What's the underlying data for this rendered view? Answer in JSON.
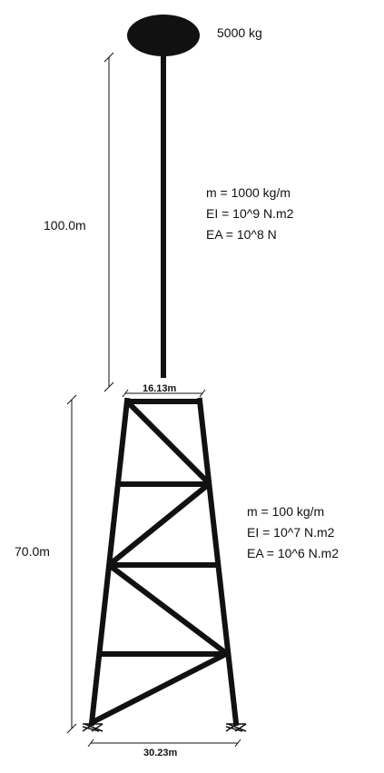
{
  "top_mass": {
    "label": "5000 kg"
  },
  "mast": {
    "height_label": "100.0m",
    "props": [
      "m = 1000 kg/m",
      "EI = 10^9 N.m2",
      "EA = 10^8 N"
    ]
  },
  "tower": {
    "height_label": "70.0m",
    "top_width_label": "16.13m",
    "base_width_label": "30.23m",
    "props": [
      "m = 100 kg/m",
      "EI = 10^7 N.m2",
      "EA = 10^6 N.m2"
    ]
  },
  "colors": {
    "ink": "#111111",
    "background": "#ffffff"
  }
}
